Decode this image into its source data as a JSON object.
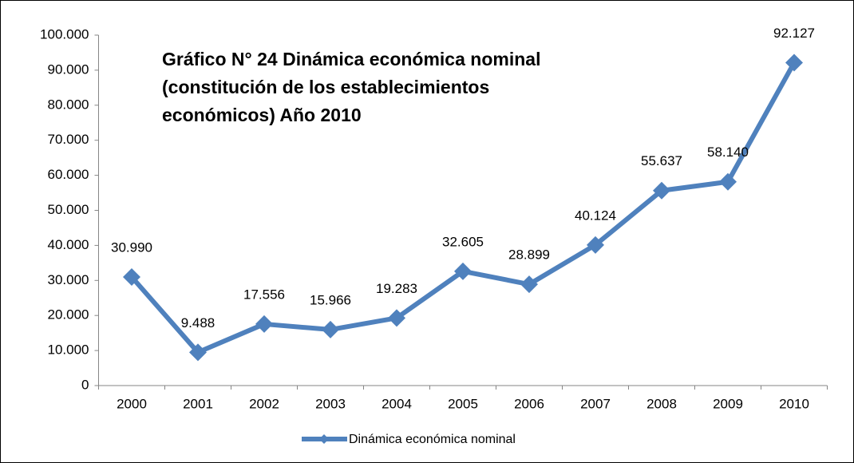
{
  "chart_data": {
    "type": "line",
    "title": [
      "Gráfico N° 24 Dinámica económica nominal",
      "(constitución de los establecimientos",
      "económicos)  Año  2010"
    ],
    "categories": [
      "2000",
      "2001",
      "2002",
      "2003",
      "2004",
      "2005",
      "2006",
      "2007",
      "2008",
      "2009",
      "2010"
    ],
    "series": [
      {
        "name": "Dinámica económica nominal",
        "color": "#4f81bd",
        "values": [
          30990,
          9488,
          17556,
          15966,
          19283,
          32605,
          28899,
          40124,
          55637,
          58140,
          92127
        ],
        "value_labels": [
          "30.990",
          "9.488",
          "17.556",
          "15.966",
          "19.283",
          "32.605",
          "28.899",
          "40.124",
          "55.637",
          "58.140",
          "92.127"
        ]
      }
    ],
    "ylim": [
      0,
      100000
    ],
    "yticks": [
      0,
      {
        "value": 10000,
        "label": "10.000"
      },
      {
        "value": 20000,
        "label": "20.000"
      },
      {
        "value": 30000,
        "label": "30.000"
      },
      {
        "value": 40000,
        "label": "40.000"
      },
      {
        "value": 50000,
        "label": "50.000"
      },
      {
        "value": 60000,
        "label": "60.000"
      },
      {
        "value": 70000,
        "label": "70.000"
      },
      {
        "value": 80000,
        "label": "80.000"
      },
      {
        "value": 90000,
        "label": "90.000"
      },
      {
        "value": 100000,
        "label": "100.000"
      }
    ],
    "grid": false,
    "legend": "bottom"
  }
}
